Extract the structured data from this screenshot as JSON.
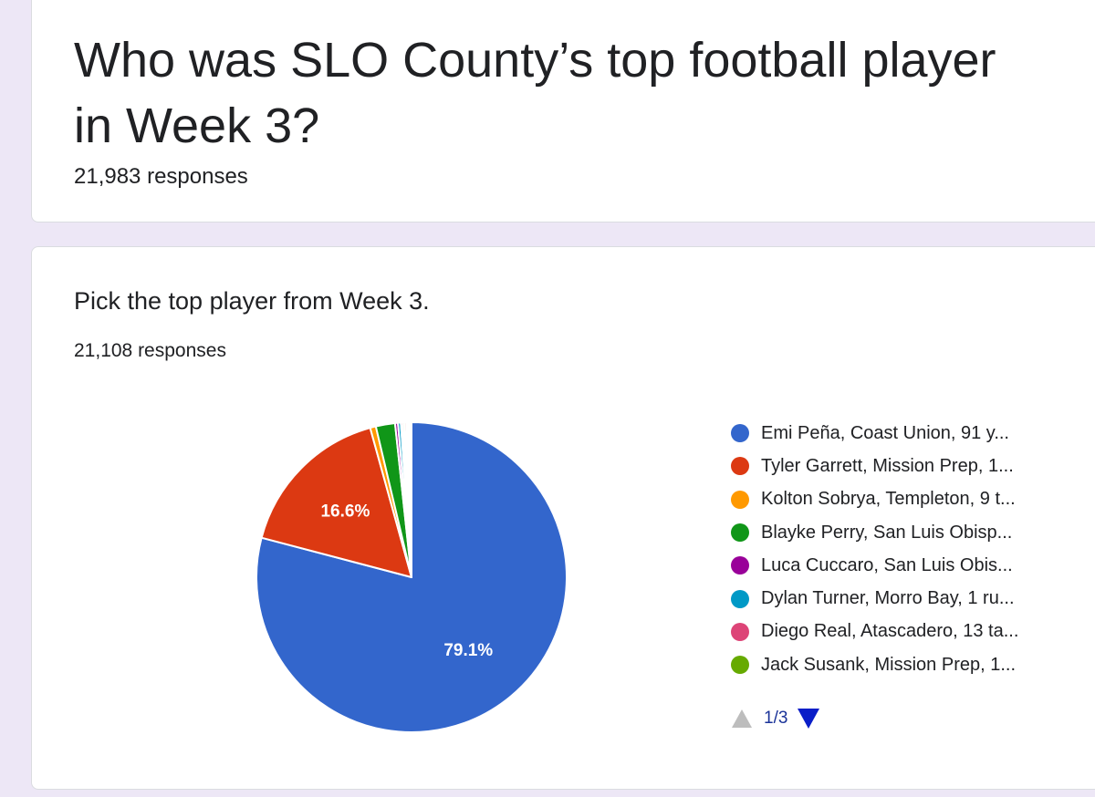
{
  "form": {
    "title": "Who was SLO County’s top football player in Week 3?",
    "responses": "21,983 responses",
    "accent_color": "#6a4fc4"
  },
  "question": {
    "title": "Pick the top player from Week 3.",
    "responses": "21,108 responses"
  },
  "chart_data": {
    "type": "pie",
    "slices": [
      {
        "label": "Emi Peña, Coast Union, 91 y...",
        "percent": 79.1,
        "data_label": "79.1%",
        "color": "#3366cc"
      },
      {
        "label": "Tyler Garrett, Mission Prep, 1...",
        "percent": 16.6,
        "data_label": "16.6%",
        "color": "#dc3912"
      },
      {
        "label": "Kolton Sobrya, Templeton, 9 t...",
        "percent": 0.6,
        "color": "#ff9900"
      },
      {
        "label": "Blayke Perry, San Luis Obisp...",
        "percent": 2.0,
        "color": "#109618"
      },
      {
        "label": "Luca Cuccaro, San Luis Obis...",
        "percent": 0.3,
        "color": "#990099"
      },
      {
        "label": "Dylan Turner, Morro Bay, 1 ru...",
        "percent": 0.3,
        "color": "#0099c6"
      },
      {
        "label": "Diego Real, Atascadero, 13 ta...",
        "percent": 0.2,
        "color": "#dd4477"
      },
      {
        "label": "Jack Susank, Mission Prep, 1...",
        "percent": 0.2,
        "color": "#66aa00"
      },
      {
        "percent": 0.2,
        "color": "#b82e2e"
      },
      {
        "percent": 0.1,
        "color": "#316395"
      },
      {
        "percent": 0.1,
        "color": "#994499"
      },
      {
        "percent": 0.1,
        "color": "#22aa99"
      },
      {
        "percent": 0.1,
        "color": "#aaaa11"
      },
      {
        "percent": 0.1,
        "color": "#6633cc"
      }
    ]
  },
  "pager": {
    "text": "1/3",
    "up_icon": "triangle-up",
    "down_icon": "triangle-down"
  }
}
